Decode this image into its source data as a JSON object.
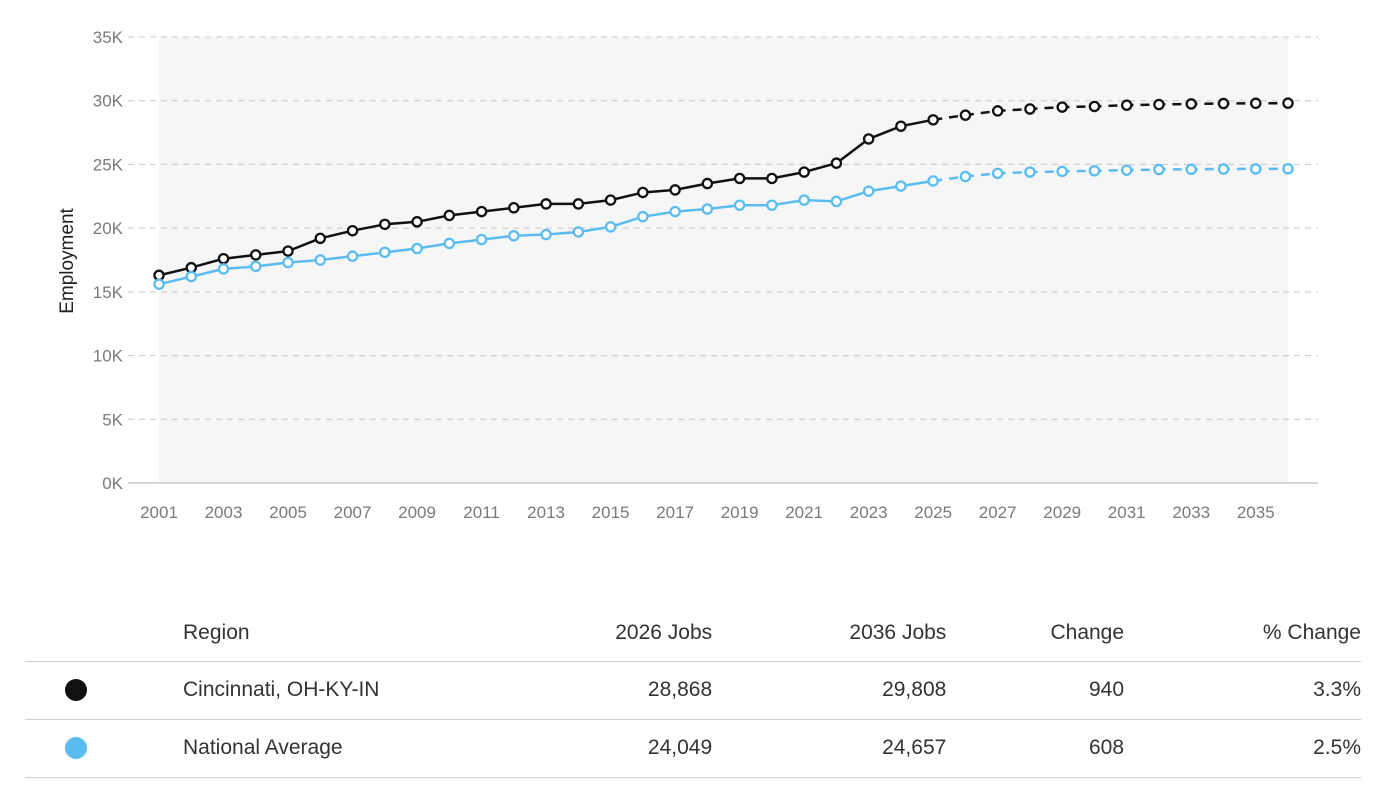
{
  "chart_data": {
    "type": "line",
    "ylabel": "Employment",
    "xlabel": "",
    "ylim": [
      0,
      35000
    ],
    "y_ticks": [
      0,
      5000,
      10000,
      15000,
      20000,
      25000,
      30000,
      35000
    ],
    "y_tick_labels": [
      "0K",
      "5K",
      "10K",
      "15K",
      "20K",
      "25K",
      "30K",
      "35K"
    ],
    "x": [
      2001,
      2002,
      2003,
      2004,
      2005,
      2006,
      2007,
      2008,
      2009,
      2010,
      2011,
      2012,
      2013,
      2014,
      2015,
      2016,
      2017,
      2018,
      2019,
      2020,
      2021,
      2022,
      2023,
      2024,
      2025,
      2026,
      2027,
      2028,
      2029,
      2030,
      2031,
      2032,
      2033,
      2034,
      2035,
      2036
    ],
    "x_tick_labels": [
      "2001",
      "2003",
      "2005",
      "2007",
      "2009",
      "2011",
      "2013",
      "2015",
      "2017",
      "2019",
      "2021",
      "2023",
      "2025",
      "2027",
      "2029",
      "2031",
      "2033",
      "2035"
    ],
    "grid": true,
    "legend": "none",
    "projection_start_year": 2025,
    "series": [
      {
        "name": "Cincinnati, OH-KY-IN",
        "color": "#111111",
        "values": [
          16300,
          16900,
          17600,
          17900,
          18200,
          19200,
          19800,
          20300,
          20500,
          21000,
          21300,
          21600,
          21900,
          21900,
          22200,
          22800,
          23000,
          23500,
          23900,
          23900,
          24400,
          25100,
          27000,
          28000,
          28500,
          28868,
          29200,
          29350,
          29500,
          29550,
          29650,
          29700,
          29750,
          29780,
          29800,
          29808
        ]
      },
      {
        "name": "National Average",
        "color": "#5bbcf0",
        "values": [
          15600,
          16200,
          16800,
          17000,
          17300,
          17500,
          17800,
          18100,
          18400,
          18800,
          19100,
          19400,
          19500,
          19700,
          20100,
          20900,
          21300,
          21500,
          21800,
          21800,
          22200,
          22100,
          22900,
          23300,
          23700,
          24049,
          24300,
          24400,
          24450,
          24500,
          24550,
          24600,
          24620,
          24640,
          24650,
          24657
        ]
      }
    ]
  },
  "table": {
    "headers": {
      "region": "Region",
      "jobs_2026": "2026 Jobs",
      "jobs_2036": "2036 Jobs",
      "change": "Change",
      "pct_change": "% Change"
    },
    "rows": [
      {
        "dot_color": "#111111",
        "region": "Cincinnati, OH-KY-IN",
        "jobs_2026": "28,868",
        "jobs_2036": "29,808",
        "change": "940",
        "pct_change": "3.3%"
      },
      {
        "dot_color": "#5bbcf0",
        "region": "National Average",
        "jobs_2026": "24,049",
        "jobs_2036": "24,657",
        "change": "608",
        "pct_change": "2.5%"
      }
    ]
  }
}
